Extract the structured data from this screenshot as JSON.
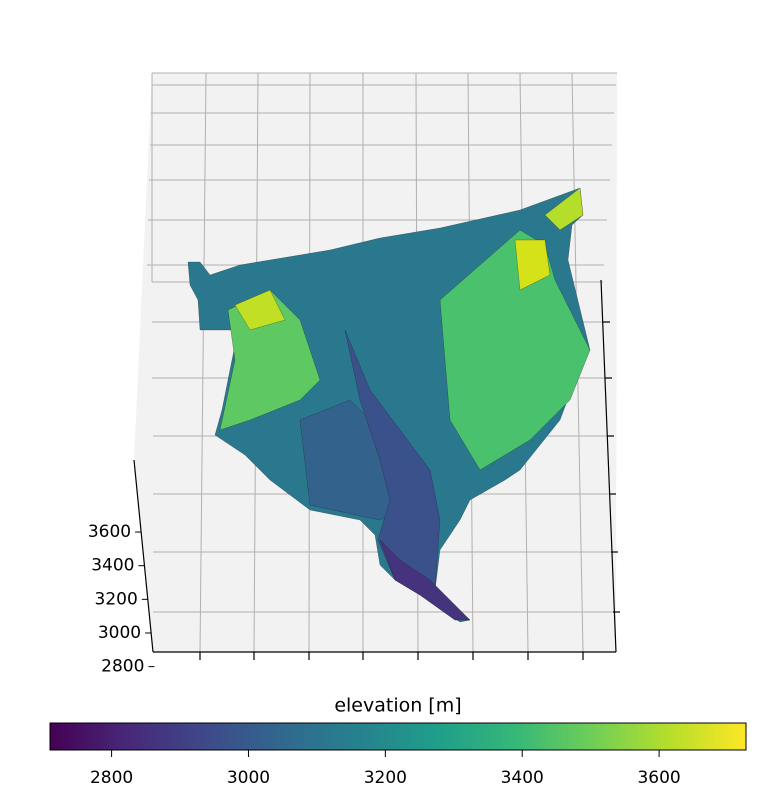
{
  "chart_data": {
    "type": "surface3d",
    "zlim": [
      2780,
      4040
    ],
    "zticks": [
      2800,
      3000,
      3200,
      3400,
      3600
    ],
    "colormap": "viridis",
    "colorbar_label": "elevation [m]",
    "clim": [
      2710,
      3727
    ],
    "colorbar_ticks": [
      2800,
      3000,
      3200,
      3400,
      3600
    ]
  }
}
